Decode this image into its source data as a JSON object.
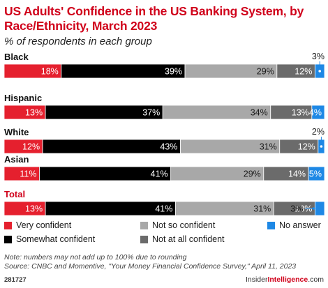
{
  "header": {
    "title": "US Adults' Confidence in the US Banking System, by Race/Ethnicity, March 2023",
    "subtitle": "% of respondents in each group"
  },
  "colors": {
    "very_confident": "#e5202e",
    "somewhat_confident": "#000000",
    "not_so_confident": "#a8a8a8",
    "not_at_all_confident": "#6b6b6b",
    "no_answer": "#1e88e5",
    "accent": "#d0021b"
  },
  "chart_data": {
    "type": "bar",
    "orientation": "horizontal",
    "stacked": true,
    "unit": "%",
    "categories": [
      "Black",
      "Hispanic",
      "White",
      "Asian",
      "Total"
    ],
    "highlight_category": "Total",
    "series": [
      {
        "name": "Very confident",
        "color": "#e5202e",
        "values": [
          18,
          13,
          12,
          11,
          13
        ]
      },
      {
        "name": "Somewhat confident",
        "color": "#000000",
        "values": [
          39,
          37,
          43,
          41,
          41
        ]
      },
      {
        "name": "Not so confident",
        "color": "#a8a8a8",
        "values": [
          29,
          34,
          31,
          29,
          31
        ]
      },
      {
        "name": "Not at all confident",
        "color": "#6b6b6b",
        "values": [
          12,
          13,
          12,
          14,
          13
        ]
      },
      {
        "name": "No answer",
        "color": "#1e88e5",
        "values": [
          3,
          4,
          2,
          5,
          3
        ]
      }
    ],
    "data_labels": [
      [
        "18%",
        "39%",
        "29%",
        "12%",
        "3%"
      ],
      [
        "13%",
        "37%",
        "34%",
        "13%",
        "4%"
      ],
      [
        "12%",
        "43%",
        "31%",
        "12%",
        "2%"
      ],
      [
        "11%",
        "41%",
        "29%",
        "14%",
        "5%"
      ],
      [
        "13%",
        "41%",
        "31%",
        "13%",
        "3%"
      ]
    ],
    "legend_position": "bottom",
    "grid": false
  },
  "legend": [
    {
      "label": "Very confident",
      "color": "#e5202e"
    },
    {
      "label": "Not so confident",
      "color": "#a8a8a8"
    },
    {
      "label": "No answer",
      "color": "#1e88e5"
    },
    {
      "label": "Somewhat confident",
      "color": "#000000"
    },
    {
      "label": "Not at all confident",
      "color": "#6b6b6b"
    }
  ],
  "footer": {
    "note": "Note: numbers may not add up to 100% due to rounding",
    "source": "Source: CNBC and Momentive, \"Your Money Financial Confidence Survey,\" April 11, 2023",
    "chart_id": "281727",
    "brand_part1": "Insider",
    "brand_part2": "Intelligence",
    "brand_part3": ".com"
  }
}
